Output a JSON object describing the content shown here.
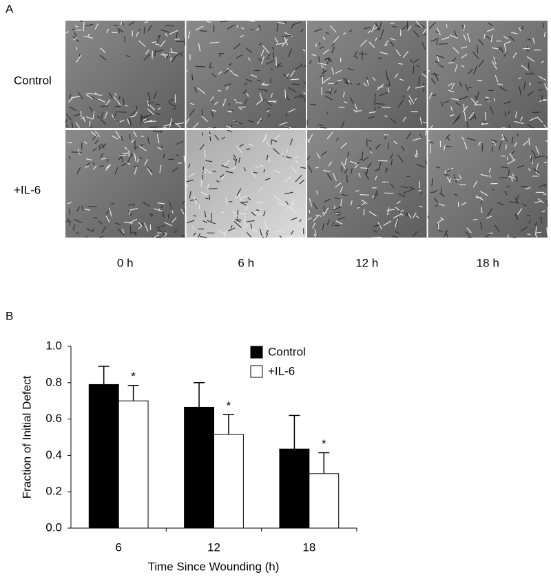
{
  "panel_a": {
    "label": "A",
    "rows": [
      "Control",
      "+IL-6"
    ],
    "columns": [
      "0 h",
      "6 h",
      "12 h",
      "18 h"
    ]
  },
  "chart_data": {
    "type": "bar",
    "label": "B",
    "x_label": "Time Since Wounding (h)",
    "y_label": "Fraction of Initial Defect",
    "categories": [
      "6",
      "12",
      "18"
    ],
    "series": [
      {
        "name": "Control",
        "color": "#000000",
        "values": [
          0.79,
          0.665,
          0.435
        ],
        "errors": [
          0.1,
          0.135,
          0.185
        ]
      },
      {
        "name": "+IL-6",
        "color": "#ffffff",
        "values": [
          0.7,
          0.515,
          0.3
        ],
        "errors": [
          0.085,
          0.11,
          0.115
        ],
        "markers": [
          "*",
          "*",
          "*"
        ]
      }
    ],
    "ylim": [
      0,
      1
    ],
    "yticks": [
      {
        "value": 0,
        "label": "0.0"
      },
      {
        "value": 0.2,
        "label": "0.2"
      },
      {
        "value": 0.4,
        "label": "0.4"
      },
      {
        "value": 0.6,
        "label": "0.6"
      },
      {
        "value": 0.8,
        "label": "0.8"
      },
      {
        "value": 1,
        "label": "1.0"
      }
    ],
    "legend": "top-right"
  }
}
